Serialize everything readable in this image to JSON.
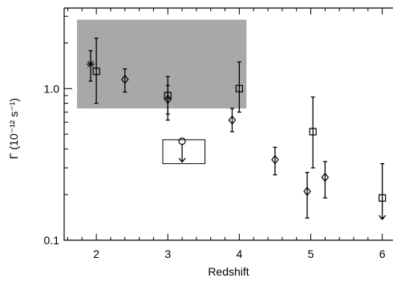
{
  "chart_data": {
    "type": "scatter",
    "xlabel": "Redshift",
    "ylabel": "Γ (10⁻¹² s⁻¹)",
    "xlim": [
      1.55,
      6.15
    ],
    "ylim": [
      0.1,
      3.4
    ],
    "yscale": "log",
    "x_ticks": [
      2,
      3,
      4,
      5,
      6
    ],
    "x_tick_labels": [
      "2",
      "3",
      "4",
      "5",
      "6"
    ],
    "y_ticks": [
      0.1,
      1.0
    ],
    "y_tick_labels": [
      "0.1",
      "1.0"
    ],
    "grid": false,
    "shaded_region": {
      "x": [
        1.73,
        4.1
      ],
      "y": [
        0.74,
        2.85
      ],
      "color": "#a8a8a8"
    },
    "open_box": {
      "x": [
        2.93,
        3.52
      ],
      "y": [
        0.32,
        0.46
      ]
    },
    "points": [
      {
        "x": 1.92,
        "y": 1.45,
        "ylo": 1.12,
        "yhi": 1.78,
        "marker": "asterisk"
      },
      {
        "x": 2.0,
        "y": 1.3,
        "ylo": 0.8,
        "yhi": 2.15,
        "marker": "square"
      },
      {
        "x": 2.4,
        "y": 1.15,
        "ylo": 0.95,
        "yhi": 1.35,
        "marker": "diamond"
      },
      {
        "x": 3.0,
        "y": 0.9,
        "ylo": 0.68,
        "yhi": 1.2,
        "marker": "square"
      },
      {
        "x": 3.0,
        "y": 0.85,
        "ylo": 0.62,
        "yhi": 1.05,
        "marker": "diamond"
      },
      {
        "x": 3.2,
        "y": 0.45,
        "upper_limit": true,
        "marker": "circle"
      },
      {
        "x": 3.9,
        "y": 0.62,
        "ylo": 0.52,
        "yhi": 0.74,
        "marker": "diamond"
      },
      {
        "x": 4.0,
        "y": 1.0,
        "ylo": 0.7,
        "yhi": 1.5,
        "marker": "square"
      },
      {
        "x": 4.5,
        "y": 0.34,
        "ylo": 0.27,
        "yhi": 0.41,
        "marker": "diamond"
      },
      {
        "x": 4.95,
        "y": 0.21,
        "ylo": 0.14,
        "yhi": 0.28,
        "marker": "diamond"
      },
      {
        "x": 5.03,
        "y": 0.52,
        "ylo": 0.3,
        "yhi": 0.88,
        "marker": "square"
      },
      {
        "x": 5.2,
        "y": 0.26,
        "ylo": 0.19,
        "yhi": 0.33,
        "marker": "diamond"
      },
      {
        "x": 6.0,
        "y": 0.19,
        "ylo": 0.14,
        "yhi": 0.32,
        "marker": "square",
        "upper_limit": true
      }
    ]
  }
}
